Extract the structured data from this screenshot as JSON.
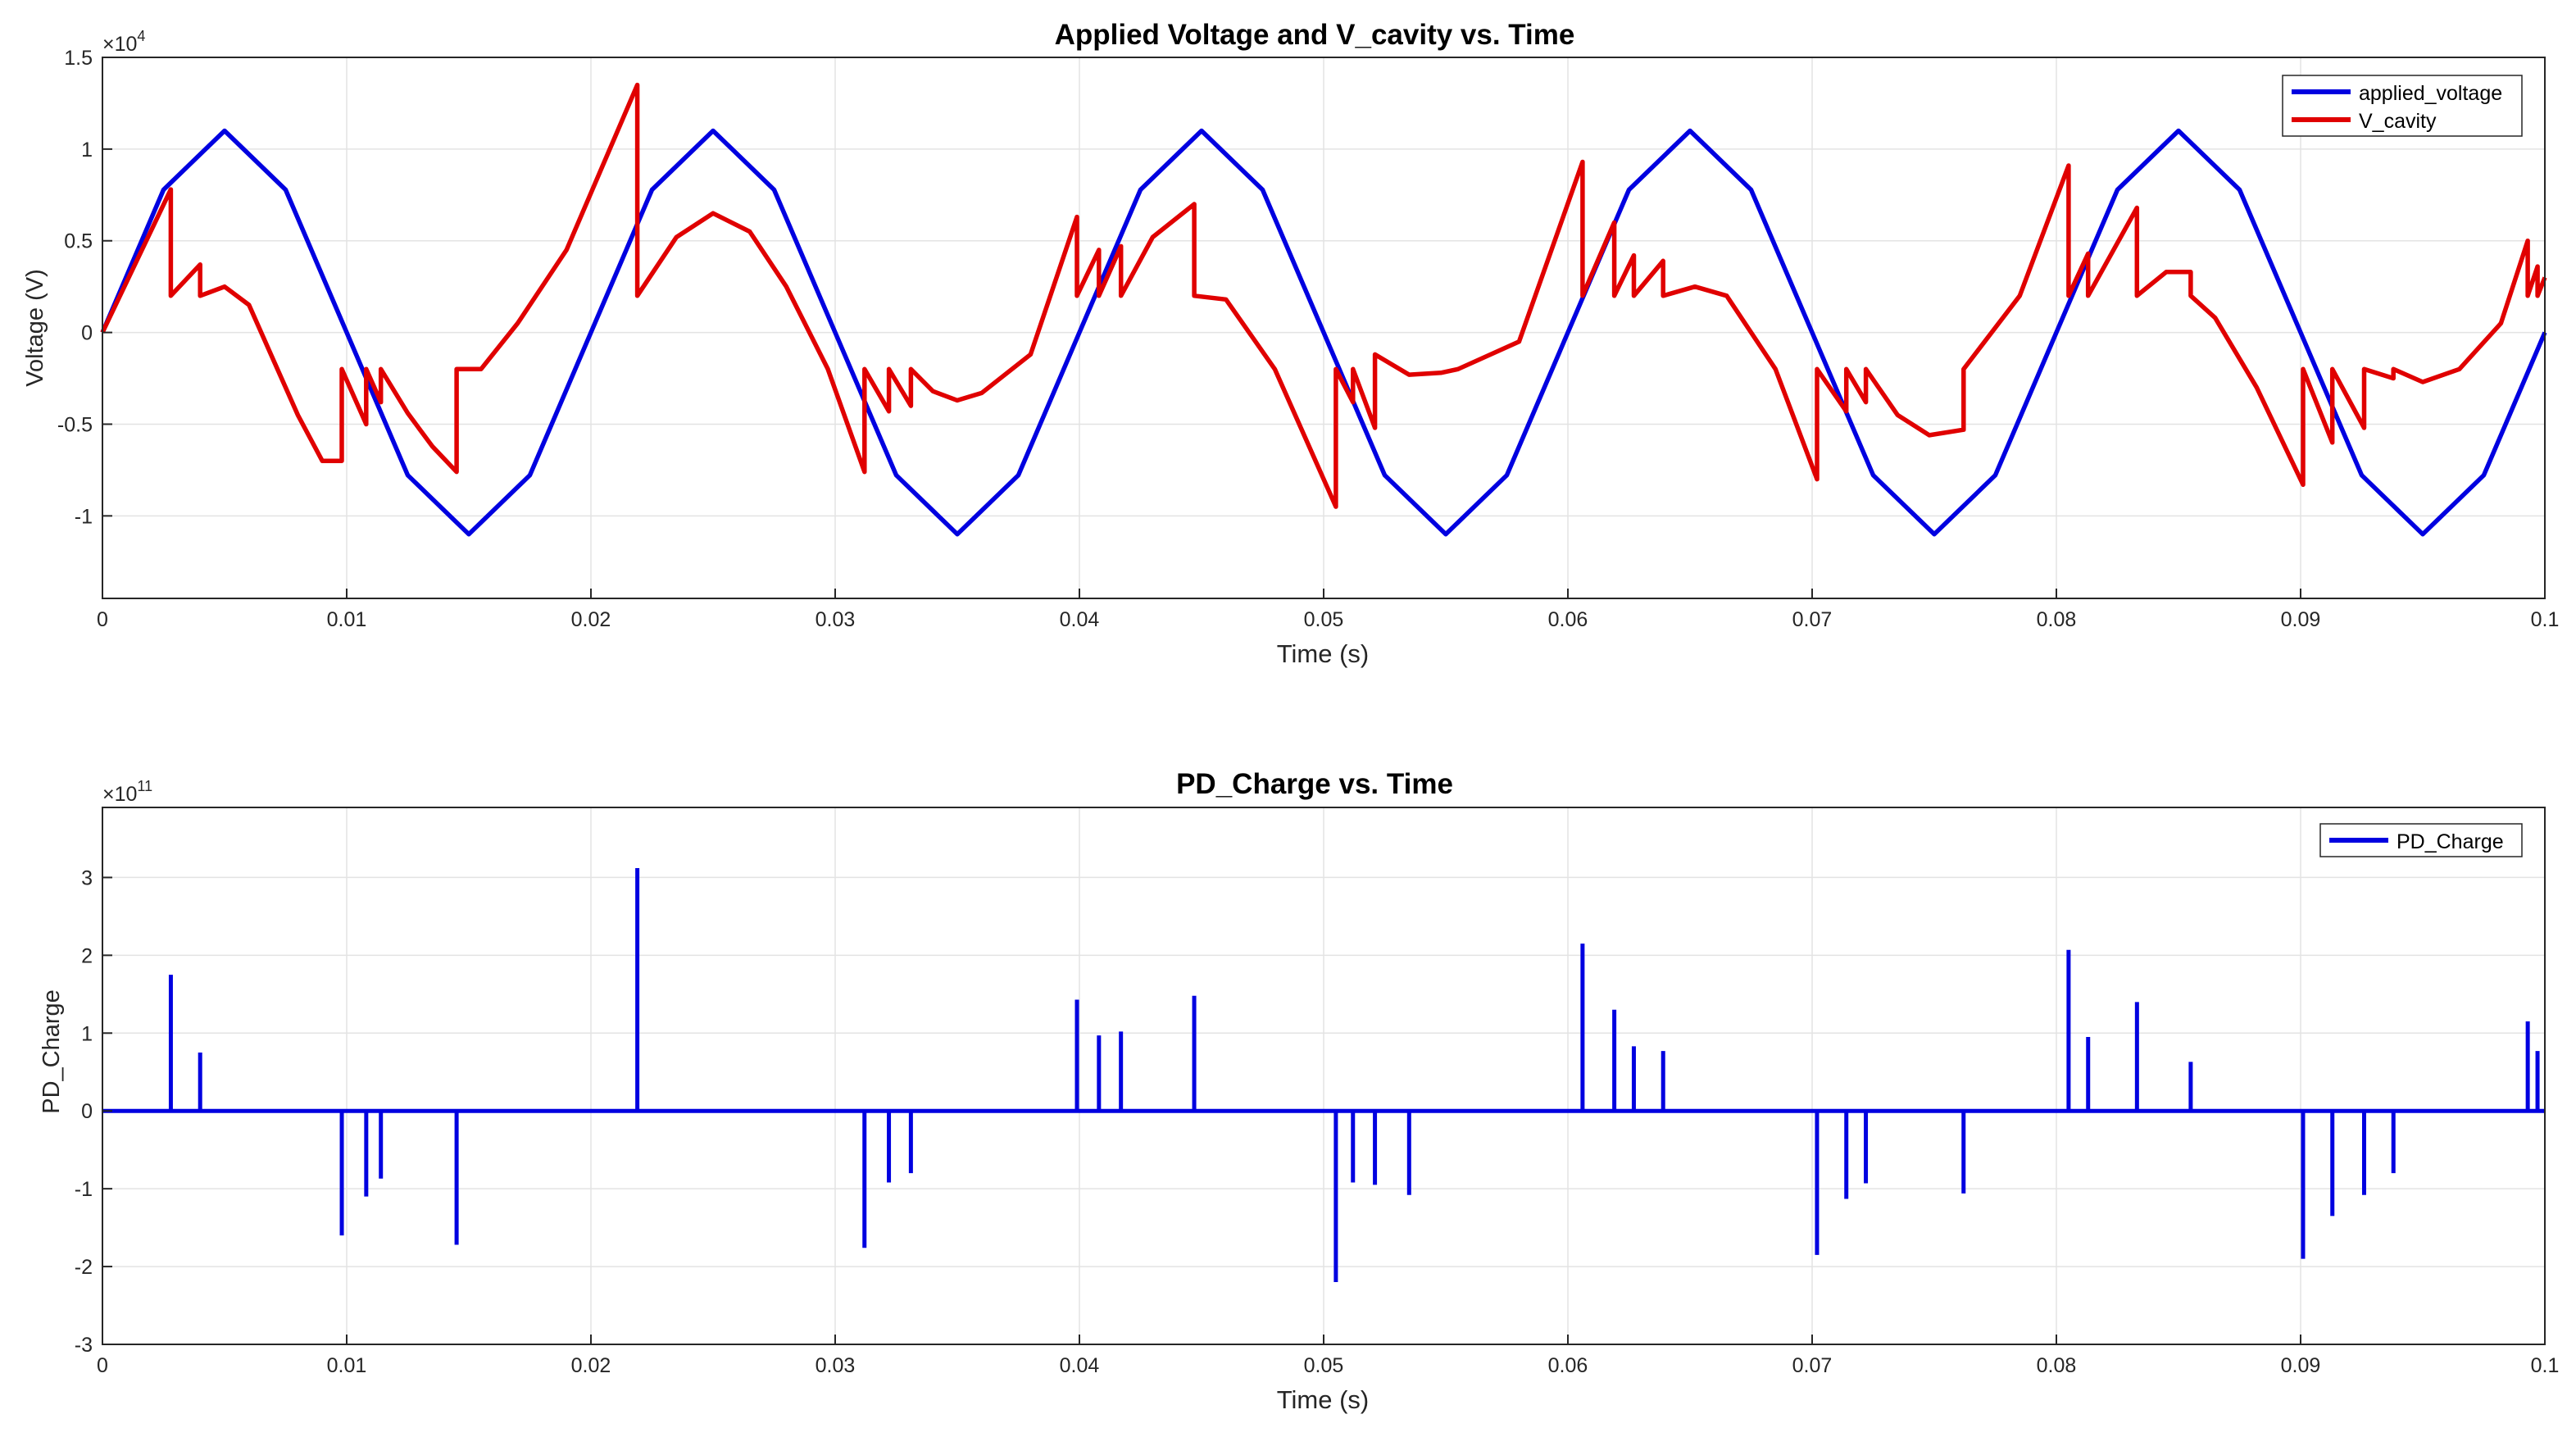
{
  "chart_data": [
    {
      "type": "line",
      "title": "Applied Voltage and V_cavity vs. Time",
      "xlabel": "Time (s)",
      "ylabel": "Voltage (V)",
      "y_exponent_label": "×10^4",
      "xlim": [
        0,
        0.1
      ],
      "ylim": [
        -1.45,
        1.5
      ],
      "y_units_scale": 10000,
      "xticks": [
        0,
        0.01,
        0.02,
        0.03,
        0.04,
        0.05,
        0.06,
        0.07,
        0.08,
        0.09,
        0.1
      ],
      "xtick_labels": [
        "0",
        "0.01",
        "0.02",
        "0.03",
        "0.04",
        "0.05",
        "0.06",
        "0.07",
        "0.08",
        "0.09",
        "0.1"
      ],
      "yticks": [
        -1,
        -0.5,
        0,
        0.5,
        1,
        1.5
      ],
      "ytick_labels": [
        "-1",
        "-0.5",
        "0",
        "0.5",
        "1",
        "1.5"
      ],
      "grid": true,
      "legend_position": "top-right",
      "series": [
        {
          "name": "applied_voltage",
          "color": "#0000e0",
          "x": [
            0,
            0.0025,
            0.005,
            0.0075,
            0.01,
            0.0125,
            0.015,
            0.0175,
            0.02,
            0.0225,
            0.025,
            0.0275,
            0.03,
            0.0325,
            0.035,
            0.0375,
            0.04,
            0.0425,
            0.045,
            0.0475,
            0.05,
            0.0525,
            0.055,
            0.0575,
            0.06,
            0.0625,
            0.065,
            0.0675,
            0.07,
            0.0725,
            0.075,
            0.0775,
            0.08,
            0.0825,
            0.085,
            0.0875,
            0.09,
            0.0925,
            0.095,
            0.0975,
            0.1
          ],
          "y": [
            0,
            0.778,
            1.1,
            0.778,
            0,
            -0.778,
            -1.1,
            -0.778,
            0,
            0.778,
            1.1,
            0.778,
            0,
            -0.778,
            -1.1,
            -0.778,
            0,
            0.778,
            1.1,
            0.778,
            0,
            -0.778,
            -1.1,
            -0.778,
            0,
            0.778,
            1.1,
            0.778,
            0,
            -0.778,
            -1.1,
            -0.778,
            0,
            0.778,
            1.1,
            0.778,
            0,
            -0.778,
            -1.1,
            -0.778,
            0
          ]
        },
        {
          "name": "V_cavity",
          "color": "#e00000",
          "x": [
            0,
            0.0028,
            0.0028,
            0.004,
            0.004,
            0.005,
            0.006,
            0.007,
            0.008,
            0.009,
            0.0098,
            0.0098,
            0.0108,
            0.0108,
            0.0114,
            0.0114,
            0.0125,
            0.0135,
            0.0145,
            0.0145,
            0.0155,
            0.017,
            0.019,
            0.0219,
            0.0219,
            0.0235,
            0.025,
            0.0265,
            0.028,
            0.0297,
            0.0312,
            0.0312,
            0.0322,
            0.0322,
            0.0331,
            0.0331,
            0.034,
            0.035,
            0.036,
            0.038,
            0.0399,
            0.0399,
            0.0408,
            0.0408,
            0.0417,
            0.0417,
            0.043,
            0.0447,
            0.0447,
            0.046,
            0.048,
            0.0505,
            0.0505,
            0.0512,
            0.0512,
            0.0521,
            0.0521,
            0.0535,
            0.0535,
            0.0548,
            0.0555,
            0.058,
            0.0606,
            0.0606,
            0.0619,
            0.0619,
            0.0627,
            0.0627,
            0.0639,
            0.0639,
            0.0652,
            0.0665,
            0.0685,
            0.0702,
            0.0702,
            0.0714,
            0.0714,
            0.0722,
            0.0722,
            0.0735,
            0.0748,
            0.0762,
            0.0762,
            0.0785,
            0.0805,
            0.0805,
            0.0813,
            0.0813,
            0.0833,
            0.0833,
            0.0845,
            0.0855,
            0.0855,
            0.0865,
            0.0882,
            0.0901,
            0.0901,
            0.0913,
            0.0913,
            0.0926,
            0.0926,
            0.0938,
            0.0938,
            0.095,
            0.0965,
            0.0982,
            0.0993,
            0.0993,
            0.0997,
            0.0997,
            0.1
          ],
          "y": [
            0,
            0.78,
            0.2,
            0.37,
            0.2,
            0.25,
            0.15,
            -0.15,
            -0.45,
            -0.7,
            -0.7,
            -0.2,
            -0.5,
            -0.2,
            -0.38,
            -0.2,
            -0.44,
            -0.62,
            -0.76,
            -0.2,
            -0.2,
            0.05,
            0.45,
            1.35,
            0.2,
            0.52,
            0.65,
            0.55,
            0.25,
            -0.2,
            -0.76,
            -0.2,
            -0.43,
            -0.2,
            -0.4,
            -0.2,
            -0.32,
            -0.37,
            -0.33,
            -0.12,
            0.63,
            0.2,
            0.45,
            0.2,
            0.47,
            0.2,
            0.52,
            0.7,
            0.2,
            0.18,
            -0.2,
            -0.95,
            -0.2,
            -0.38,
            -0.2,
            -0.52,
            -0.12,
            -0.23,
            -0.23,
            -0.22,
            -0.2,
            -0.05,
            0.93,
            0.2,
            0.6,
            0.2,
            0.42,
            0.2,
            0.39,
            0.2,
            0.25,
            0.2,
            -0.2,
            -0.8,
            -0.2,
            -0.43,
            -0.2,
            -0.38,
            -0.2,
            -0.45,
            -0.56,
            -0.53,
            -0.2,
            0.2,
            0.91,
            0.2,
            0.43,
            0.2,
            0.68,
            0.2,
            0.33,
            0.33,
            0.2,
            0.08,
            -0.3,
            -0.83,
            -0.2,
            -0.6,
            -0.2,
            -0.52,
            -0.2,
            -0.25,
            -0.2,
            -0.27,
            -0.2,
            0.05,
            0.5,
            0.2,
            0.36,
            0.2,
            0.3
          ]
        }
      ]
    },
    {
      "type": "line",
      "title": "PD_Charge vs. Time",
      "xlabel": "Time (s)",
      "ylabel": "PD_Charge",
      "y_exponent_label": "×10^11",
      "xlim": [
        0,
        0.1
      ],
      "ylim": [
        -3,
        3.9
      ],
      "y_units_scale": 100000000000,
      "xticks": [
        0,
        0.01,
        0.02,
        0.03,
        0.04,
        0.05,
        0.06,
        0.07,
        0.08,
        0.09,
        0.1
      ],
      "xtick_labels": [
        "0",
        "0.01",
        "0.02",
        "0.03",
        "0.04",
        "0.05",
        "0.06",
        "0.07",
        "0.08",
        "0.09",
        "0.1"
      ],
      "yticks": [
        -3,
        -2,
        -1,
        0,
        1,
        2,
        3
      ],
      "ytick_labels": [
        "-3",
        "-2",
        "-1",
        "0",
        "1",
        "2",
        "3"
      ],
      "grid": true,
      "legend_position": "top-right",
      "series": [
        {
          "name": "PD_Charge",
          "color": "#0000e0",
          "impulses": {
            "x": [
              0.0028,
              0.004,
              0.0098,
              0.0108,
              0.0114,
              0.0145,
              0.0219,
              0.0312,
              0.0322,
              0.0331,
              0.0399,
              0.0408,
              0.0417,
              0.0447,
              0.0505,
              0.0512,
              0.0521,
              0.0535,
              0.0606,
              0.0619,
              0.0627,
              0.0639,
              0.0702,
              0.0714,
              0.0722,
              0.0762,
              0.0805,
              0.0813,
              0.0833,
              0.0855,
              0.0901,
              0.0913,
              0.0926,
              0.0938,
              0.0993,
              0.0997
            ],
            "y": [
              1.75,
              0.75,
              -1.6,
              -1.1,
              -0.87,
              -1.72,
              3.12,
              -1.76,
              -0.92,
              -0.8,
              1.43,
              0.97,
              1.02,
              1.48,
              -2.2,
              -0.92,
              -0.95,
              -1.08,
              2.15,
              1.3,
              0.83,
              0.77,
              -1.85,
              -1.13,
              -0.93,
              -1.06,
              2.07,
              0.95,
              1.4,
              0.63,
              -1.9,
              -1.35,
              -1.08,
              -0.8,
              1.15,
              0.77
            ]
          }
        }
      ]
    }
  ]
}
